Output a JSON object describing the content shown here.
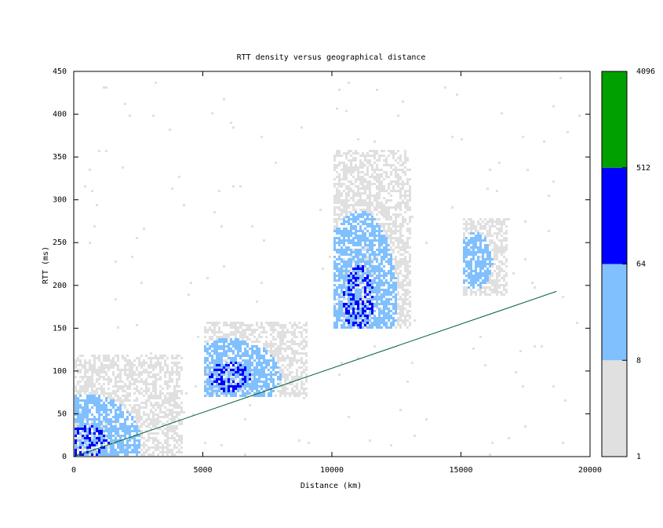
{
  "chart_data": {
    "type": "heatmap",
    "title": "RTT density versus geographical distance",
    "xlabel": "Distance (km)",
    "ylabel": "RTT (ms)",
    "xlim": [
      0,
      20000
    ],
    "ylim": [
      0,
      450
    ],
    "x_ticks": [
      0,
      5000,
      10000,
      15000,
      20000
    ],
    "y_ticks": [
      0,
      50,
      100,
      150,
      200,
      250,
      300,
      350,
      400,
      450
    ],
    "grid": false,
    "colorbar": {
      "tick_labels": [
        "1",
        "8",
        "64",
        "512",
        "4096"
      ],
      "bands": [
        {
          "from": 1,
          "to": 8,
          "color": "#e0e0e0"
        },
        {
          "from": 8,
          "to": 64,
          "color": "#80c0ff"
        },
        {
          "from": 64,
          "to": 512,
          "color": "#0000ff"
        },
        {
          "from": 512,
          "to": 4096,
          "color": "#00a000"
        }
      ]
    },
    "density_clusters": [
      {
        "x_range": [
          0,
          4200
        ],
        "rtt_range": [
          0,
          120
        ],
        "peak_x": 500,
        "peak_rtt": 15,
        "level": "high"
      },
      {
        "x_range": [
          5000,
          9000
        ],
        "rtt_range": [
          70,
          160
        ],
        "peak_x": 6000,
        "peak_rtt": 95,
        "level": "high"
      },
      {
        "x_range": [
          10000,
          13000
        ],
        "rtt_range": [
          150,
          360
        ],
        "peak_x": 11000,
        "peak_rtt": 185,
        "level": "high"
      },
      {
        "x_range": [
          15000,
          16800
        ],
        "rtt_range": [
          190,
          280
        ],
        "peak_x": 15500,
        "peak_rtt": 230,
        "level": "medium"
      }
    ],
    "series": [
      {
        "type": "line",
        "color": "#006030",
        "x": [
          0,
          18700
        ],
        "y": [
          0,
          193
        ]
      }
    ]
  }
}
